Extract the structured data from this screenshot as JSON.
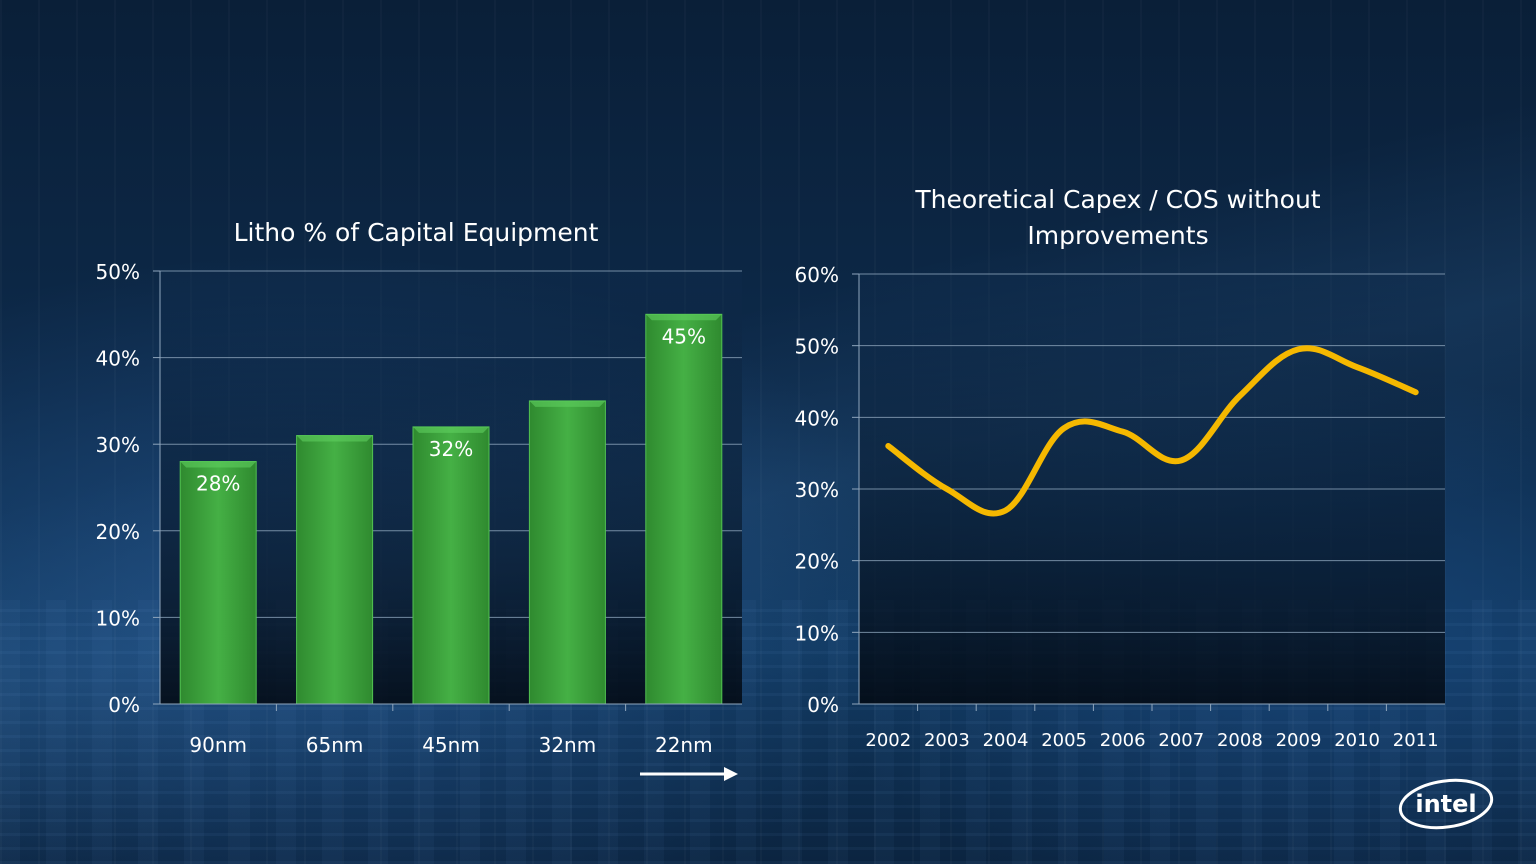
{
  "chart_data": [
    {
      "type": "bar",
      "title": "Litho % of Capital Equipment",
      "categories": [
        "90nm",
        "65nm",
        "45nm",
        "32nm",
        "22nm"
      ],
      "values": [
        28,
        31,
        32,
        35,
        45
      ],
      "data_labels": [
        "28%",
        "",
        "32%",
        "",
        "45%"
      ],
      "yticks": [
        "0%",
        "10%",
        "20%",
        "30%",
        "40%",
        "50%"
      ],
      "ylim": [
        0,
        50
      ],
      "grid": true,
      "bar_color": "#3a9e3a",
      "annotation": "arrow pointing right below 22nm"
    },
    {
      "type": "line",
      "title_lines": [
        "Theoretical Capex / COS without",
        "Improvements"
      ],
      "x": [
        "2002",
        "2003",
        "2004",
        "2005",
        "2006",
        "2007",
        "2008",
        "2009",
        "2010",
        "2011"
      ],
      "values": [
        36,
        30,
        27,
        38.5,
        38,
        34,
        43,
        49.5,
        47,
        43.5
      ],
      "yticks": [
        "0%",
        "10%",
        "20%",
        "30%",
        "40%",
        "50%",
        "60%"
      ],
      "ylim": [
        0,
        60
      ],
      "grid": true,
      "line_color": "#f5b800"
    }
  ],
  "logo": {
    "text": "intel",
    "icon": "intel-logo-icon"
  }
}
